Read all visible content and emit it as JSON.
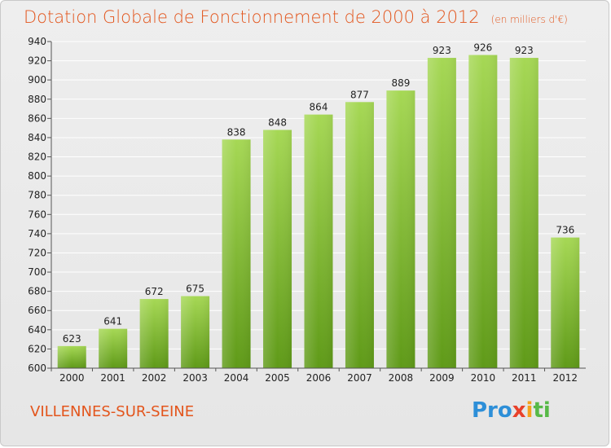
{
  "header": {
    "title": "Dotation Globale de Fonctionnement de 2000 à 2012",
    "subtitle": "(en milliers d'€)"
  },
  "footer": {
    "commune": "VILLENNES-SUR-SEINE",
    "logo": {
      "part1": "Pro",
      "part2": "x",
      "part3": "i",
      "part4": "ti"
    }
  },
  "colors": {
    "bar_light": "#a6d855",
    "bar_dark": "#5f9a18",
    "title": "#e3551c"
  },
  "chart_data": {
    "type": "bar",
    "title": "Dotation Globale de Fonctionnement de 2000 à 2012",
    "subtitle": "(en milliers d'€)",
    "xlabel": "",
    "ylabel": "",
    "categories": [
      "2000",
      "2001",
      "2002",
      "2003",
      "2004",
      "2005",
      "2006",
      "2007",
      "2008",
      "2009",
      "2010",
      "2011",
      "2012"
    ],
    "values": [
      623,
      641,
      672,
      675,
      838,
      848,
      864,
      877,
      889,
      923,
      926,
      923,
      736
    ],
    "data_labels": [
      "623",
      "641",
      "672",
      "675",
      "838",
      "848",
      "864",
      "877",
      "889",
      "923",
      "926",
      "923",
      "736"
    ],
    "ylim": [
      600,
      940
    ],
    "yticks": [
      600,
      620,
      640,
      660,
      680,
      700,
      720,
      740,
      760,
      780,
      800,
      820,
      840,
      860,
      880,
      900,
      920,
      940
    ],
    "grid": true
  }
}
